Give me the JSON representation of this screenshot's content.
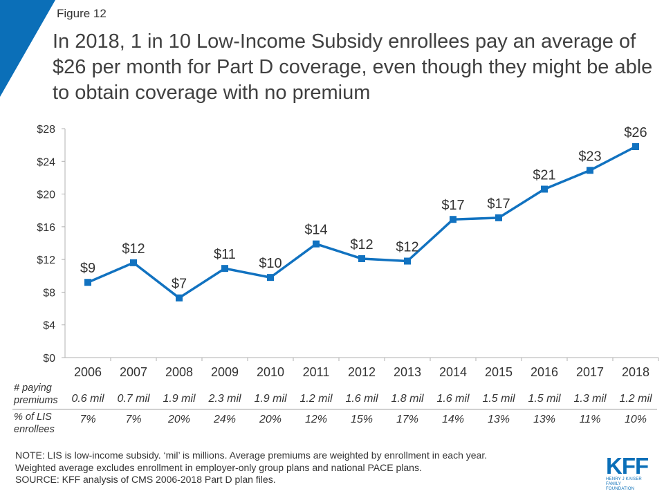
{
  "figure_label": "Figure 12",
  "title": "In 2018, 1 in 10 Low-Income Subsidy enrollees pay an average of $26 per month for Part D coverage, even though they might be able to obtain coverage with no premium",
  "colors": {
    "accent": "#0b6fb8",
    "line": "#1172c0"
  },
  "chart_data": {
    "type": "line",
    "title": "",
    "xlabel": "",
    "ylabel": "",
    "categories": [
      "2006",
      "2007",
      "2008",
      "2009",
      "2010",
      "2011",
      "2012",
      "2013",
      "2014",
      "2015",
      "2016",
      "2017",
      "2018"
    ],
    "values": [
      9.2,
      11.6,
      7.3,
      10.9,
      9.8,
      13.9,
      12.1,
      11.8,
      16.9,
      17.1,
      20.6,
      22.9,
      25.8
    ],
    "data_labels": [
      "$9",
      "$12",
      "$7",
      "$11",
      "$10",
      "$14",
      "$12",
      "$12",
      "$17",
      "$17",
      "$21",
      "$23",
      "$26"
    ],
    "ylim": [
      0,
      28
    ],
    "yticks": [
      0,
      4,
      8,
      12,
      16,
      20,
      24,
      28
    ],
    "ytick_labels": [
      "$0",
      "$4",
      "$8",
      "$12",
      "$16",
      "$20",
      "$24",
      "$28"
    ],
    "grid": false,
    "legend": "none"
  },
  "table": {
    "paying_label": [
      "# paying",
      "premiums"
    ],
    "paying": [
      "0.6 mil",
      "0.7 mil",
      "1.9 mil",
      "2.3 mil",
      "1.9 mil",
      "1.2 mil",
      "1.6 mil",
      "1.8 mil",
      "1.6 mil",
      "1.5 mil",
      "1.5 mil",
      "1.3 mil",
      "1.2 mil"
    ],
    "pct_label": [
      "% of LIS",
      "enrollees"
    ],
    "pct": [
      "7%",
      "7%",
      "20%",
      "24%",
      "20%",
      "12%",
      "15%",
      "17%",
      "14%",
      "13%",
      "13%",
      "11%",
      "10%"
    ]
  },
  "notes": [
    "NOTE: LIS is low-income subsidy. ‘mil’ is millions. Average premiums are weighted by enrollment in each year.",
    "Weighted average excludes enrollment in employer-only group plans and national PACE plans.",
    "SOURCE: KFF analysis of CMS 2006-2018 Part D plan files."
  ],
  "logo": {
    "mark": "KFF",
    "sub1": "HENRY J KAISER",
    "sub2": "FAMILY FOUNDATION"
  }
}
